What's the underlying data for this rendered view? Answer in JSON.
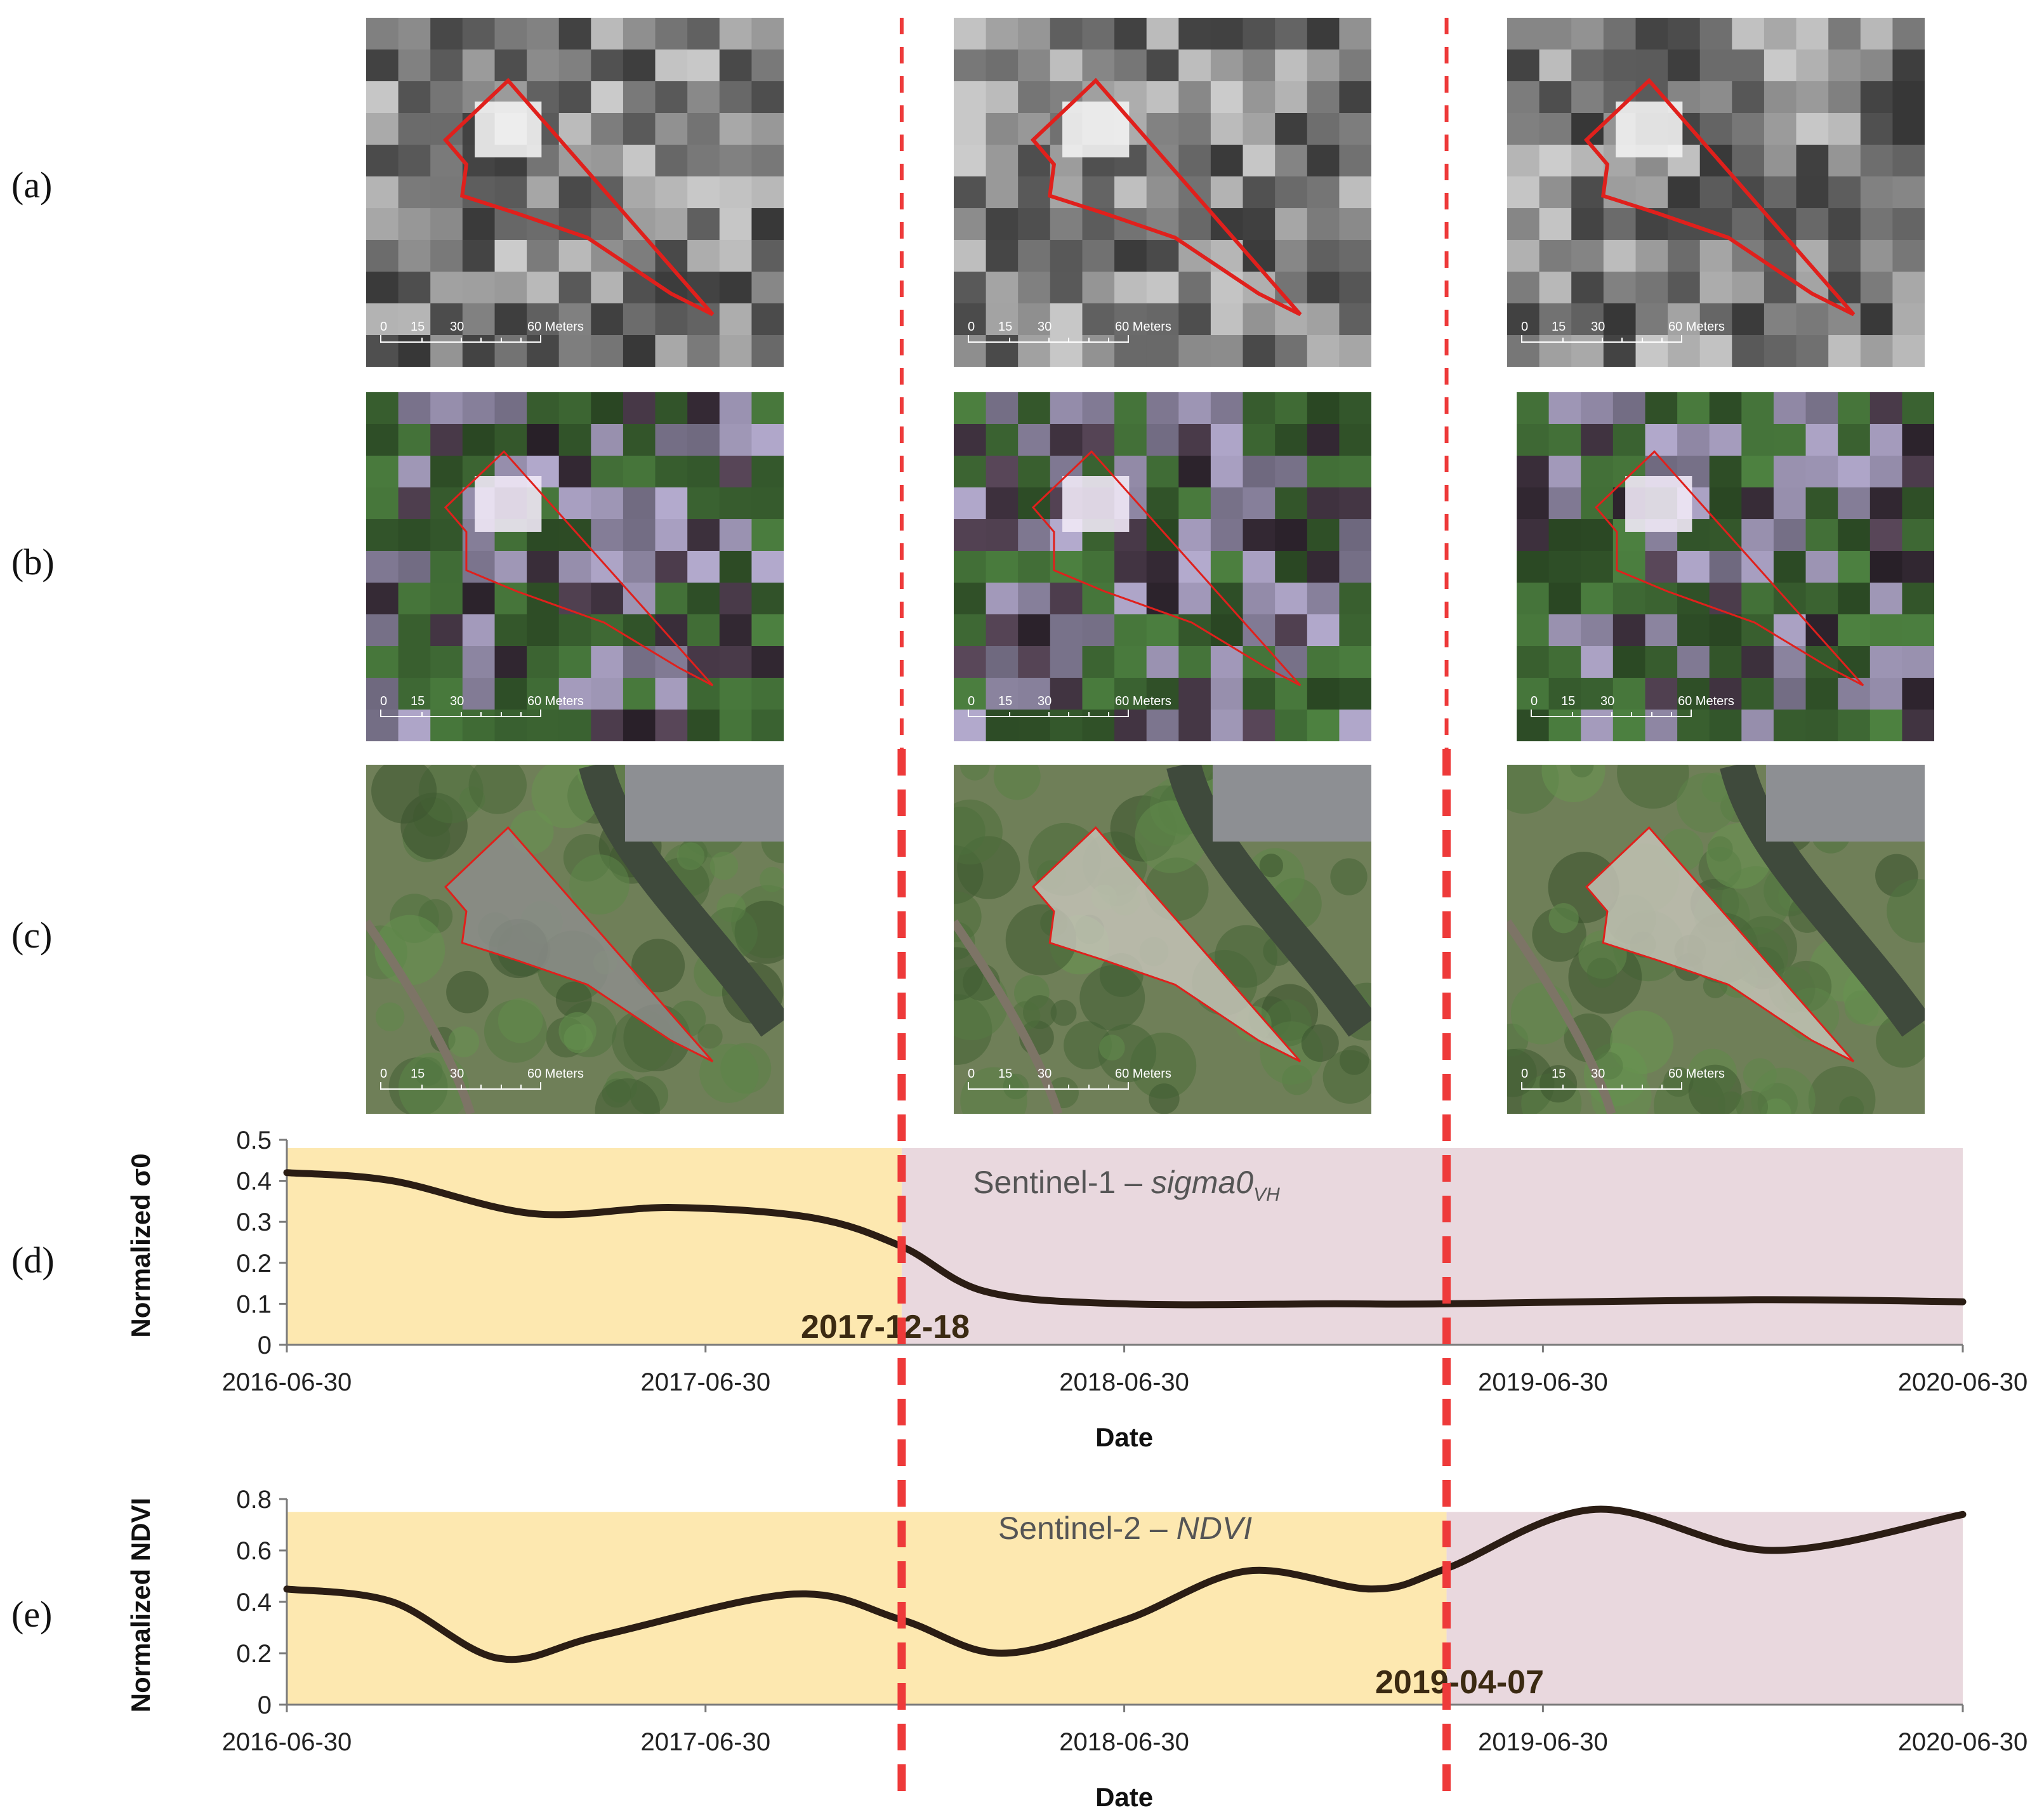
{
  "row_labels": [
    "(a)",
    "(b)",
    "(c)",
    "(d)",
    "(e)"
  ],
  "scale_bar": {
    "ticks": [
      "0",
      "15",
      "30",
      "60"
    ],
    "unit": "Meters"
  },
  "colors": {
    "polygon": "#e0201c",
    "event_line": "#ee3a3a",
    "before_region": "#fde8b0",
    "after_region": "#e9d8de",
    "series": "#2b1d14"
  },
  "chart_data": [
    {
      "type": "line",
      "title": "Sentinel-1 – sigma0VH",
      "title_parts": {
        "prefix": "Sentinel-1 – ",
        "italic": "sigma0",
        "sub": "VH"
      },
      "xlabel": "Date",
      "ylabel": "Normalized σ0",
      "x_ticks": [
        "2016-06-30",
        "2017-06-30",
        "2018-06-30",
        "2019-06-30",
        "2020-06-30"
      ],
      "y_ticks": [
        "0",
        "0.1",
        "0.2",
        "0.3",
        "0.4",
        "0.5"
      ],
      "ylim": [
        0,
        0.5
      ],
      "xlim": [
        "2016-06-30",
        "2020-06-30"
      ],
      "change_date": "2017-12-18",
      "regions": [
        {
          "from": "2016-06-30",
          "to": "2017-12-18",
          "ymax": 0.48,
          "color": "#fde8b0"
        },
        {
          "from": "2017-12-18",
          "to": "2020-06-30",
          "ymax": 0.48,
          "color": "#e9d8de"
        }
      ],
      "series": [
        {
          "x": [
            "2016-06-30",
            "2016-09-30",
            "2017-01-31",
            "2017-06-01",
            "2017-10-01",
            "2017-12-18",
            "2018-03-01",
            "2018-06-30",
            "2018-12-31",
            "2019-04-07",
            "2019-12-31",
            "2020-06-30"
          ],
          "y": [
            0.42,
            0.4,
            0.32,
            0.335,
            0.31,
            0.24,
            0.13,
            0.1,
            0.1,
            0.1,
            0.11,
            0.105
          ]
        }
      ],
      "annotation": "2017-12-18",
      "grid": false
    },
    {
      "type": "line",
      "title": "Sentinel-2 – NDVI",
      "title_parts": {
        "prefix": "Sentinel-2 – ",
        "italic": "NDVI",
        "sub": ""
      },
      "xlabel": "Date",
      "ylabel": "Normalized NDVI",
      "x_ticks": [
        "2016-06-30",
        "2017-06-30",
        "2018-06-30",
        "2019-06-30",
        "2020-06-30"
      ],
      "y_ticks": [
        "0",
        "0.2",
        "0.4",
        "0.6",
        "0.8"
      ],
      "ylim": [
        0,
        0.8
      ],
      "xlim": [
        "2016-06-30",
        "2020-06-30"
      ],
      "change_date": "2019-04-07",
      "regions": [
        {
          "from": "2016-06-30",
          "to": "2019-04-07",
          "ymax": 0.75,
          "color": "#fde8b0"
        },
        {
          "from": "2019-04-07",
          "to": "2020-06-30",
          "ymax": 0.75,
          "color": "#e9d8de"
        }
      ],
      "series": [
        {
          "x": [
            "2016-06-30",
            "2016-09-30",
            "2017-01-01",
            "2017-04-01",
            "2017-09-15",
            "2017-12-18",
            "2018-03-15",
            "2018-07-01",
            "2018-10-15",
            "2019-02-01",
            "2019-04-07",
            "2019-08-15",
            "2020-01-15",
            "2020-06-30"
          ],
          "y": [
            0.45,
            0.4,
            0.18,
            0.27,
            0.43,
            0.33,
            0.2,
            0.33,
            0.52,
            0.45,
            0.53,
            0.76,
            0.6,
            0.74
          ]
        }
      ],
      "annotation": "2019-04-07",
      "grid": false
    }
  ]
}
